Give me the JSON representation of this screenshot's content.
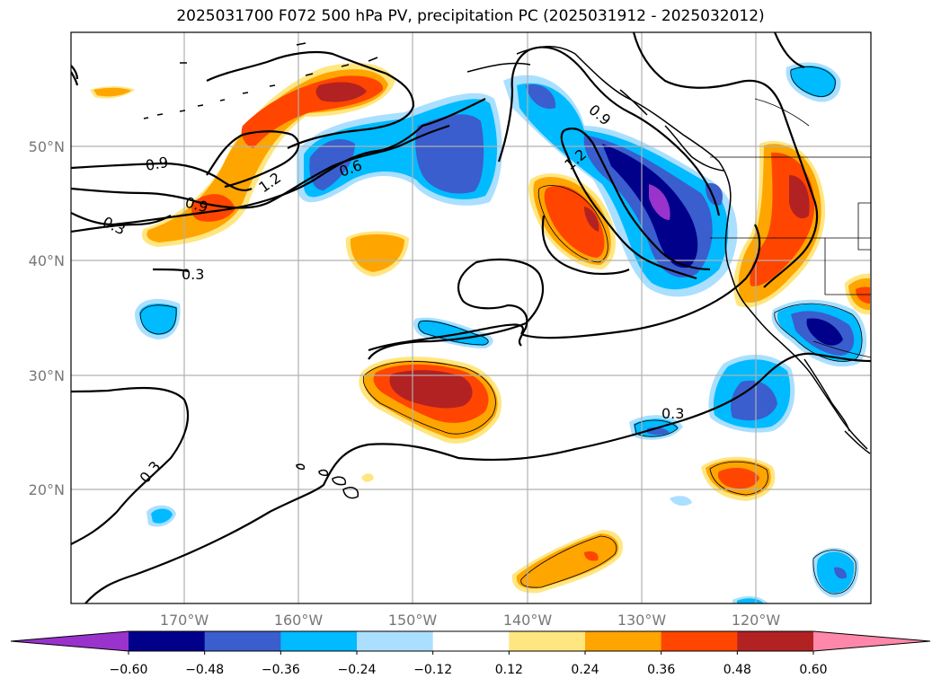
{
  "title": "2025031700 F072 500 hPa PV, precipitation PC (2025031912 - 2025032012)",
  "lat_labels": [
    "50°N",
    "40°N",
    "30°N",
    "20°N"
  ],
  "lon_labels": [
    "170°W",
    "160°W",
    "150°W",
    "140°W",
    "130°W",
    "120°W"
  ],
  "colorbar": {
    "ticks": [
      "−0.60",
      "−0.48",
      "−0.36",
      "−0.24",
      "−0.12",
      "0.12",
      "0.24",
      "0.36",
      "0.48",
      "0.60"
    ],
    "colors": [
      "#9933cc",
      "#00008b",
      "#3a5ecd",
      "#00bbff",
      "#aadfff",
      "#ffffff",
      "#ffe680",
      "#ffa500",
      "#ff4500",
      "#b22222",
      "#ff88aa"
    ]
  },
  "contour_labels": [
    "0.3",
    "0.3",
    "0.3",
    "0.3",
    "0.6",
    "0.9",
    "0.9",
    "0.9",
    "1.2",
    "1.2"
  ],
  "colors": {
    "purple": "#9933cc",
    "navy": "#00008b",
    "royal": "#3a5ecd",
    "cyan": "#00bbff",
    "lightblue": "#aadfff",
    "yellow": "#ffe680",
    "orange": "#ffa500",
    "redorange": "#ff4500",
    "firebrick": "#b22222",
    "pink": "#ff88aa"
  }
}
